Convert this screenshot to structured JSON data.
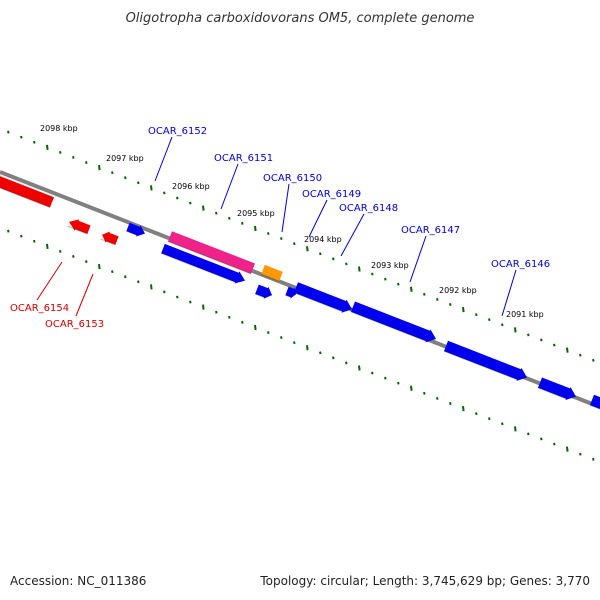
{
  "title": "Oligotropha carboxidovorans OM5, complete genome",
  "accession_text": "Accession: NC_011386",
  "summary_text": "Topology: circular; Length: 3,745,629 bp; Genes: 3,770",
  "colors": {
    "backbone": "#808080",
    "forward_gene": "#0000ee",
    "reverse_gene": "#ee0000",
    "pink_gene": "#ee2288",
    "orange_gene": "#ff9900",
    "ticks": "#006600",
    "forward_label": "#0000cc",
    "reverse_label": "#cc0000"
  },
  "scale_ticks_kbp": [
    "2098 kbp",
    "2097 kbp",
    "2096 kbp",
    "2095 kbp",
    "2094 kbp",
    "2093 kbp",
    "2092 kbp",
    "2091 kbp"
  ],
  "gene_labels": [
    {
      "text": "OCAR_6152",
      "strand": "forward"
    },
    {
      "text": "OCAR_6151",
      "strand": "forward"
    },
    {
      "text": "OCAR_6150",
      "strand": "forward"
    },
    {
      "text": "OCAR_6149",
      "strand": "forward"
    },
    {
      "text": "OCAR_6148",
      "strand": "forward"
    },
    {
      "text": "OCAR_6147",
      "strand": "forward"
    },
    {
      "text": "OCAR_6146",
      "strand": "forward"
    },
    {
      "text": "OCAR_6154",
      "strand": "reverse"
    },
    {
      "text": "OCAR_6153",
      "strand": "reverse"
    }
  ]
}
